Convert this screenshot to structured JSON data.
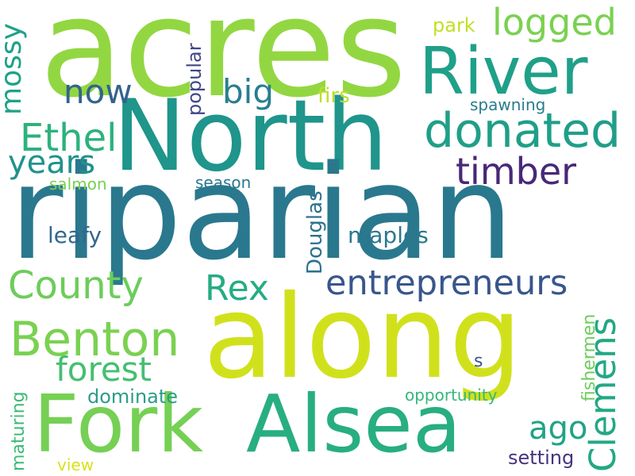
{
  "words": [
    {
      "text": "acres",
      "color": "#92d742"
    },
    {
      "text": "North",
      "color": "#1f958b"
    },
    {
      "text": "River",
      "color": "#1fa088"
    },
    {
      "text": "riparian",
      "color": "#2a788e"
    },
    {
      "text": "along",
      "color": "#d0e11c"
    },
    {
      "text": "Fork",
      "color": "#75d054"
    },
    {
      "text": "Alsea",
      "color": "#28ae80"
    },
    {
      "text": "donated",
      "color": "#1f9f88"
    },
    {
      "text": "logged",
      "color": "#7ad151"
    },
    {
      "text": "timber",
      "color": "#482878"
    },
    {
      "text": "entrepreneurs",
      "color": "#39568c"
    },
    {
      "text": "Benton",
      "color": "#7ad151"
    },
    {
      "text": "County",
      "color": "#6ccd5a"
    },
    {
      "text": "Clemens",
      "color": "#22a884"
    },
    {
      "text": "Ethel",
      "color": "#2db27d"
    },
    {
      "text": "years",
      "color": "#20928c"
    },
    {
      "text": "now",
      "color": "#33638d"
    },
    {
      "text": "big",
      "color": "#277f8e"
    },
    {
      "text": "mossy",
      "color": "#1fa188"
    },
    {
      "text": "forest",
      "color": "#44bf70"
    },
    {
      "text": "Rex",
      "color": "#25ac82"
    },
    {
      "text": "ago",
      "color": "#20a386"
    },
    {
      "text": "park",
      "color": "#c2df23"
    },
    {
      "text": "firs",
      "color": "#bddf26"
    },
    {
      "text": "popular",
      "color": "#3f4788"
    },
    {
      "text": "spawning",
      "color": "#287d8e"
    },
    {
      "text": "salmon",
      "color": "#7ad151"
    },
    {
      "text": "season",
      "color": "#2a788e"
    },
    {
      "text": "Douglas",
      "color": "#2c728e"
    },
    {
      "text": "leafy",
      "color": "#31688e"
    },
    {
      "text": "maples",
      "color": "#2a788e"
    },
    {
      "text": "dominate",
      "color": "#2c9c8a"
    },
    {
      "text": "maturing",
      "color": "#3bbb75"
    },
    {
      "text": "view",
      "color": "#d8e219"
    },
    {
      "text": "opportunity",
      "color": "#35b779"
    },
    {
      "text": "fishermen",
      "color": "#6ccd5a"
    },
    {
      "text": "s",
      "color": "#3b528b"
    },
    {
      "text": "setting",
      "color": "#46337e"
    }
  ]
}
